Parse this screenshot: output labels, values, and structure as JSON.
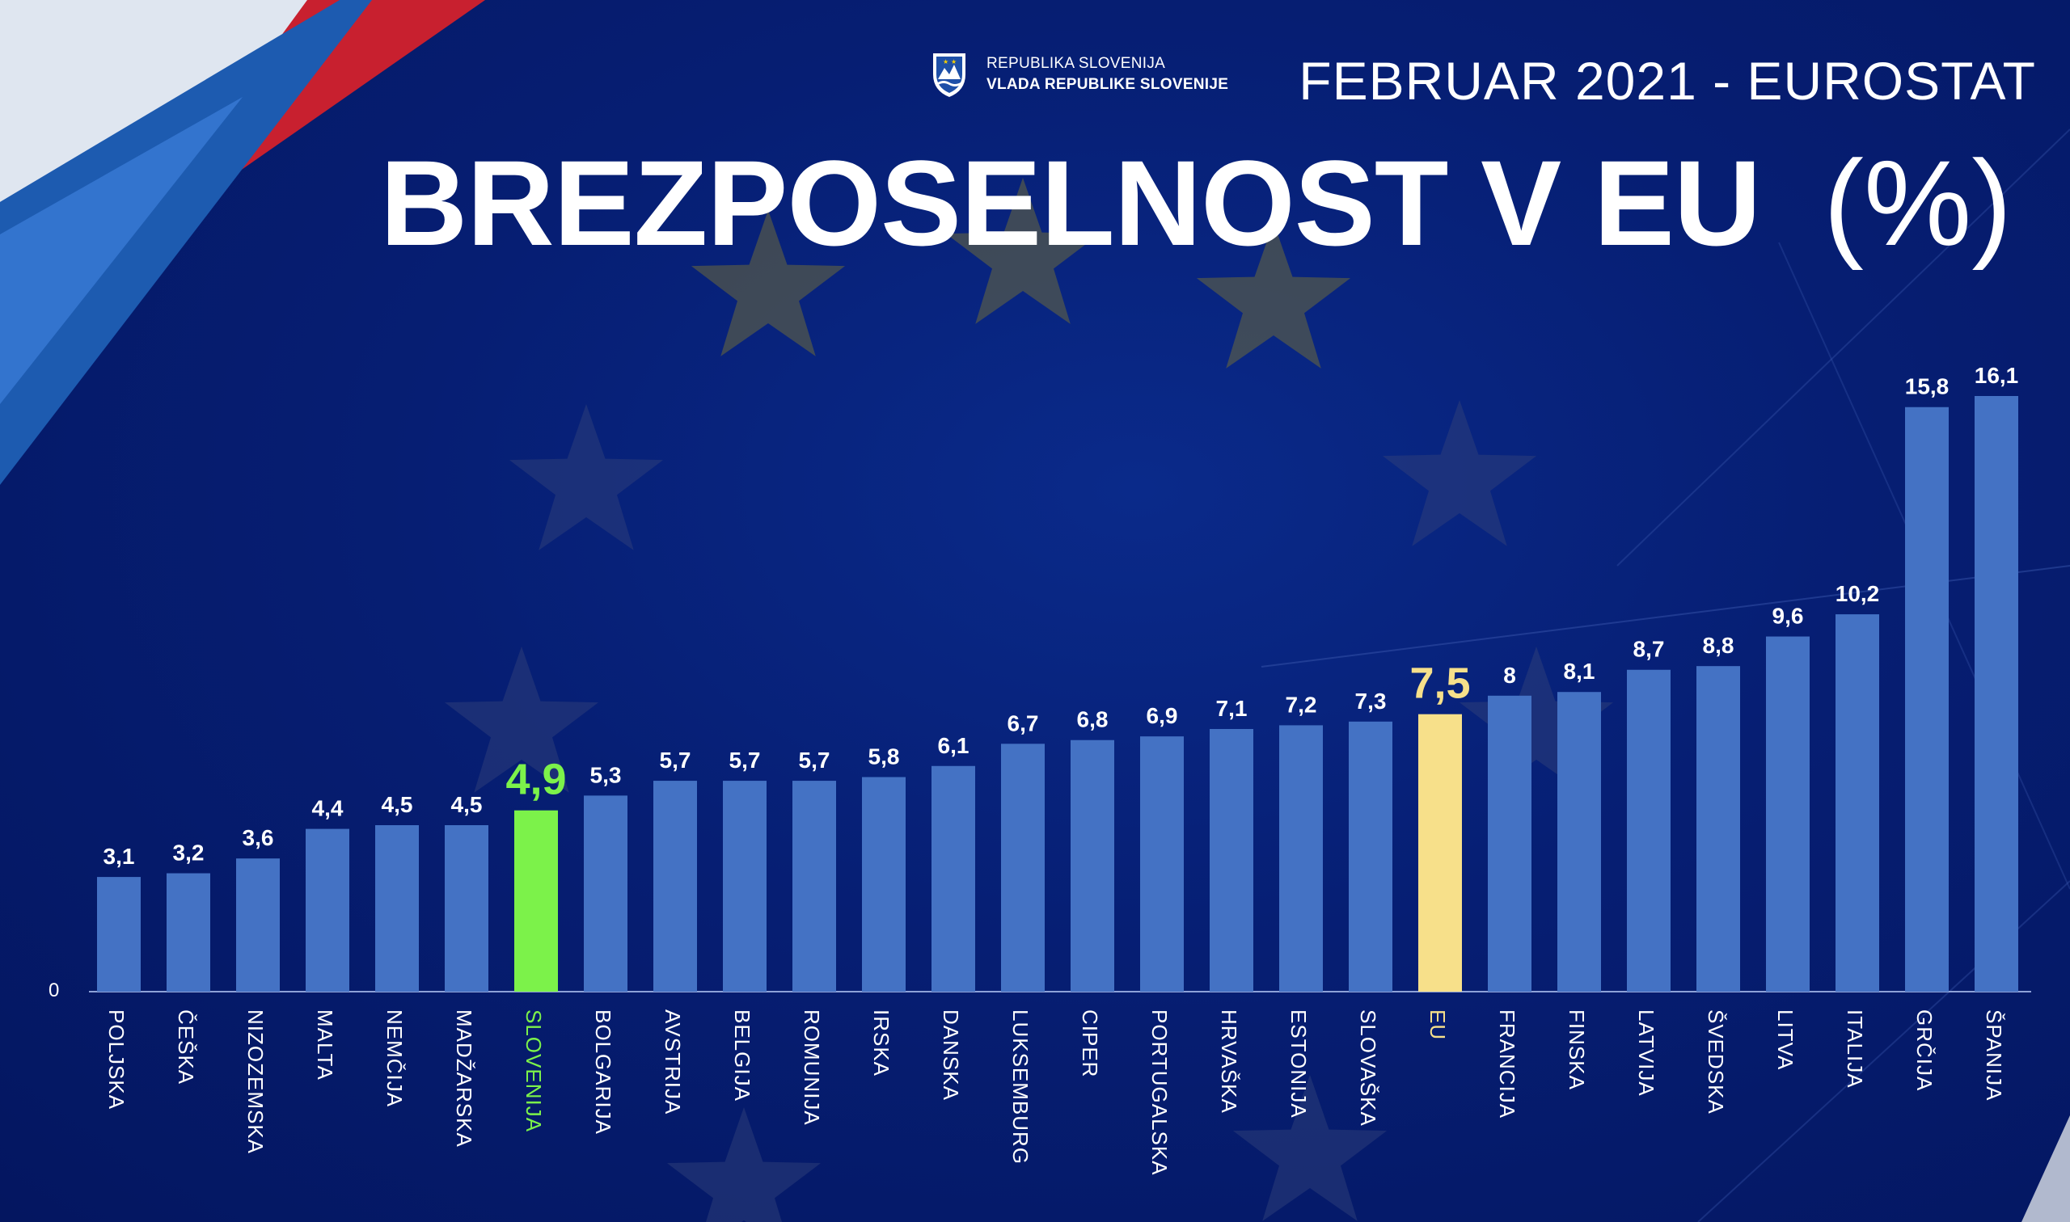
{
  "header": {
    "org_line1": "REPUBLIKA SLOVENIJA",
    "org_line2": "VLADA REPUBLIKE SLOVENIJE",
    "source": "FEBRUAR 2021 - EUROSTAT",
    "title": "BREZPOSELNOST V EU",
    "unit": "(%)"
  },
  "colors": {
    "background": "#061e73",
    "bar": "#4472c4",
    "slovenia": "#7cf24a",
    "eu": "#f7e08a",
    "text": "#ffffff"
  },
  "chart_data": {
    "type": "bar",
    "title": "BREZPOSELNOST V EU (%)",
    "xlabel": "",
    "ylabel": "",
    "ylim": [
      0,
      16.1
    ],
    "grid": false,
    "y_tick_labels": [
      "0"
    ],
    "categories": [
      "POLJSKA",
      "ČEŠKA",
      "NIZOZEMSKA",
      "MALTA",
      "NEMČIJA",
      "MADŽARSKA",
      "SLOVENIJA",
      "BOLGARIJA",
      "AVSTRIJA",
      "BELGIJA",
      "ROMUNIJA",
      "IRSKA",
      "DANSKA",
      "LUKSEMBURG",
      "CIPER",
      "PORTUGALSKA",
      "HRVAŠKA",
      "ESTONIJA",
      "SLOVAŠKA",
      "EU",
      "FRANCIJA",
      "FINSKA",
      "LATVIJA",
      "ŠVEDSKA",
      "LITVA",
      "ITALIJA",
      "GRČIJA",
      "ŠPANIJA"
    ],
    "values": [
      3.1,
      3.2,
      3.6,
      4.4,
      4.5,
      4.5,
      4.9,
      5.3,
      5.7,
      5.7,
      5.7,
      5.8,
      6.1,
      6.7,
      6.8,
      6.9,
      7.1,
      7.2,
      7.3,
      7.5,
      8,
      8.1,
      8.7,
      8.8,
      9.6,
      10.2,
      15.8,
      16.1
    ],
    "value_labels": [
      "3,1",
      "3,2",
      "3,6",
      "4,4",
      "4,5",
      "4,5",
      "4,9",
      "5,3",
      "5,7",
      "5,7",
      "5,7",
      "5,8",
      "6,1",
      "6,7",
      "6,8",
      "6,9",
      "7,1",
      "7,2",
      "7,3",
      "7,5",
      "8",
      "8,1",
      "8,7",
      "8,8",
      "9,6",
      "10,2",
      "15,8",
      "16,1"
    ],
    "highlights": {
      "SLOVENIJA": "slovenia",
      "EU": "eu"
    }
  }
}
